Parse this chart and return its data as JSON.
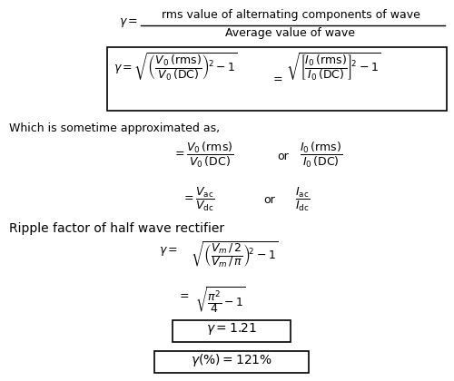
{
  "background_color": "#ffffff",
  "figsize": [
    5.0,
    4.2
  ],
  "dpi": 100,
  "elements": {
    "gamma_def_gamma": "$\\gamma =$",
    "gamma_def_num": "rms value of alternating components of wave",
    "gamma_def_den": "Average value of wave",
    "box_left": "$\\gamma = \\sqrt{\\left(\\dfrac{V_0\\,(\\mathrm{rms})}{V_0\\,(\\mathrm{DC})}\\right)^{\\!2} - 1}$",
    "box_mid": "$=$",
    "box_right": "$\\sqrt{\\left[\\dfrac{I_0\\,(\\mathrm{rms})}{I_0\\,(\\mathrm{DC})}\\right]^{\\!2} - 1}$",
    "approx_text": "Which is sometime approximated as,",
    "approx1_left": "$= \\dfrac{V_0\\,(\\mathrm{rms})}{V_0\\,(\\mathrm{DC})}$",
    "approx1_or": "or",
    "approx1_right": "$\\dfrac{I_0\\,(\\mathrm{rms})}{I_0\\,(\\mathrm{DC})}$",
    "approx2_left": "$= \\dfrac{V_{\\mathrm{ac}}}{V_{\\mathrm{dc}}}$",
    "approx2_or": "or",
    "approx2_right": "$\\dfrac{I_{\\mathrm{ac}}}{I_{\\mathrm{dc}}}$",
    "ripple_text": "Ripple factor of half wave rectifier",
    "ripple_eq1_lhs": "$\\gamma =$",
    "ripple_eq1_rhs": "$\\sqrt{\\left(\\dfrac{V_m\\,/\\,2}{V_m\\,/\\,\\pi}\\right)^{\\!2} - 1}$",
    "ripple_eq2_lhs": "$=$",
    "ripple_eq2_rhs": "$\\sqrt{\\dfrac{\\pi^2}{4} - 1}$",
    "result1": "$\\gamma = 1.21$",
    "result2": "$\\gamma(\\%) = 121\\%$"
  }
}
